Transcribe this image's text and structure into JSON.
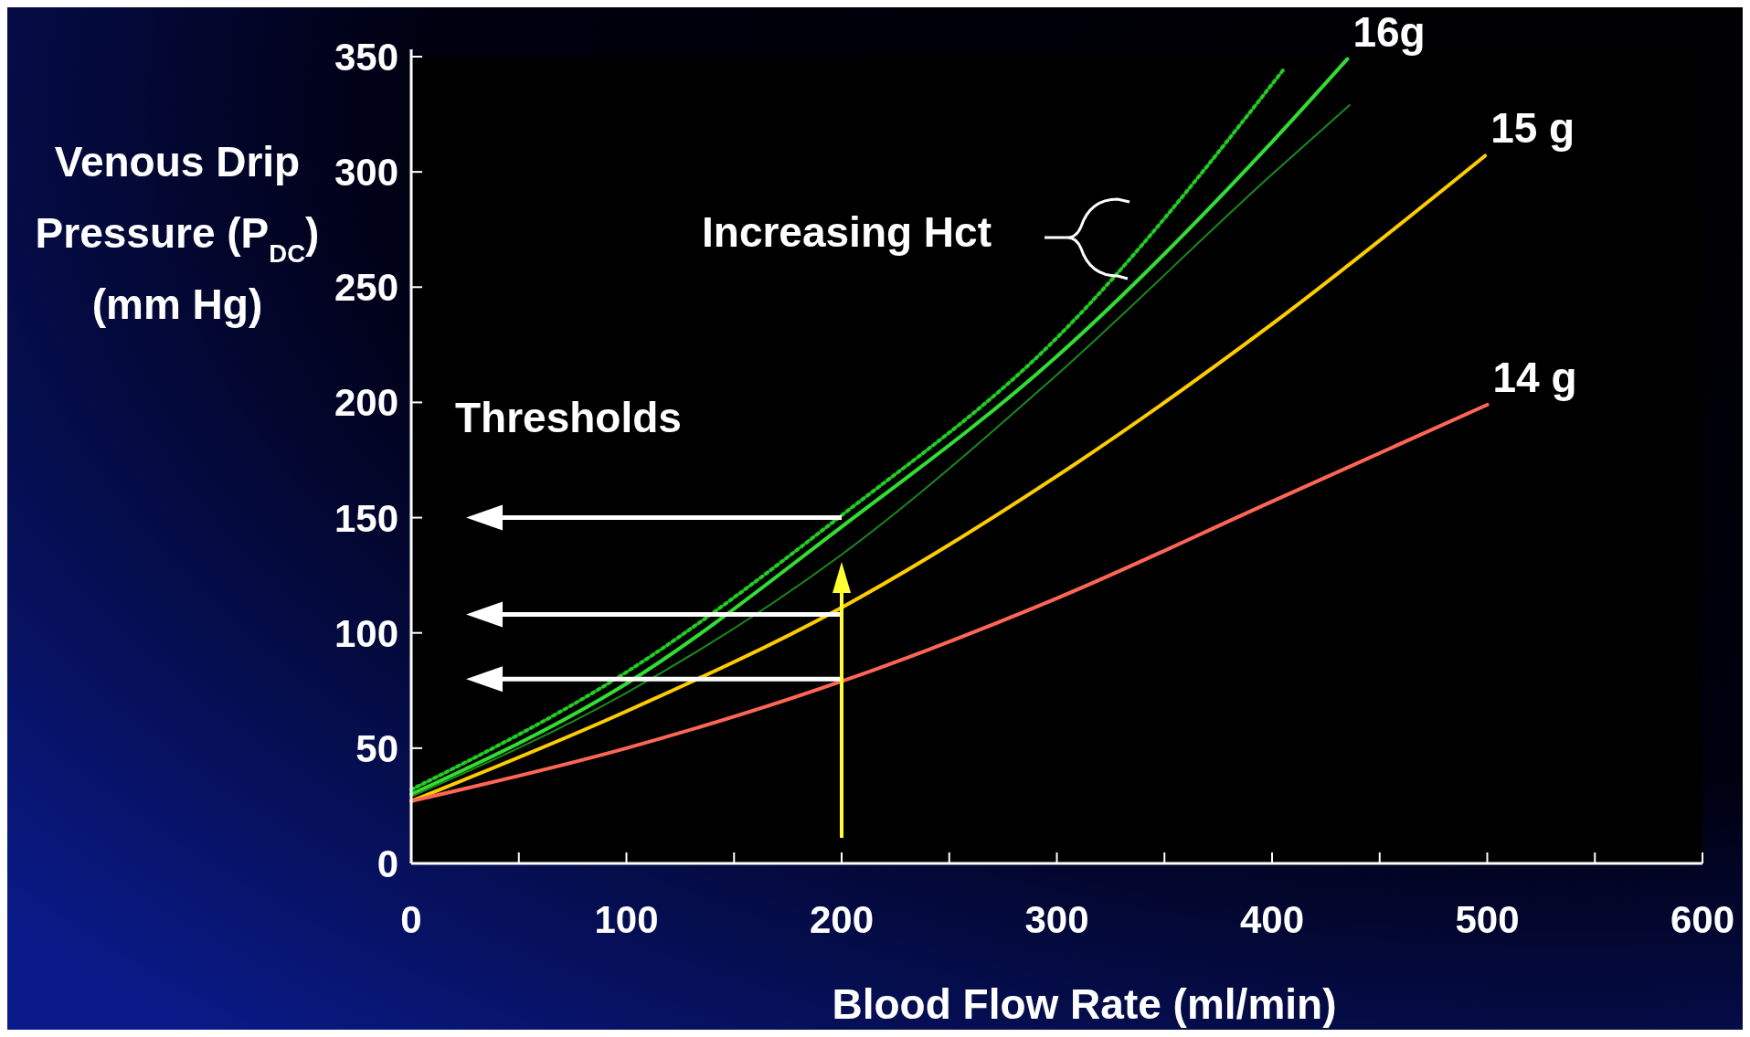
{
  "chart_data": {
    "type": "line",
    "xlabel": "Blood Flow Rate (ml/min)",
    "ylabel": "Venous Drip\nPressure (P$_{DC}$)\n(mm Hg)",
    "xlim": [
      0,
      600
    ],
    "ylim": [
      0,
      350
    ],
    "xticks": [
      0,
      {
        "value": 50,
        "label": null
      },
      100,
      {
        "value": 150,
        "label": null
      },
      200,
      {
        "value": 250,
        "label": null
      },
      300,
      {
        "value": 350,
        "label": null
      },
      400,
      {
        "value": 450,
        "label": null
      },
      500,
      {
        "value": 550,
        "label": null
      },
      600
    ],
    "yticks": [
      0,
      50,
      100,
      150,
      200,
      250,
      300,
      350
    ],
    "grid": false,
    "marker": "none",
    "series": [
      {
        "color": "#22cc22",
        "line_style": "dotted",
        "x": [
          0,
          100,
          200,
          300,
          405
        ],
        "values": [
          32,
          83,
          151,
          228,
          344
        ]
      },
      {
        "name": "16g",
        "color": "#33dd33",
        "line_style": "solid",
        "x": [
          0,
          100,
          200,
          300,
          400,
          435
        ],
        "values": [
          30,
          78,
          146,
          220,
          313,
          349
        ]
      },
      {
        "color": "#1a8a1a",
        "line_style": "solid",
        "x": [
          0,
          100,
          200,
          300,
          400,
          436
        ],
        "values": [
          29,
          74,
          134,
          212,
          299,
          329
        ]
      },
      {
        "name": "15 g",
        "color": "#ffcc00",
        "line_style": "solid",
        "x": [
          0,
          100,
          200,
          300,
          400,
          499
        ],
        "values": [
          27,
          66,
          111,
          168,
          234,
          307
        ]
      },
      {
        "name": "14 g",
        "color": "#ff6655",
        "line_style": "solid",
        "x": [
          0,
          100,
          200,
          300,
          400,
          500
        ],
        "values": [
          27,
          50,
          79,
          115,
          157,
          199
        ]
      }
    ],
    "ref_lines": [
      {
        "axis": "y",
        "value": 150,
        "color": "#ffffff"
      },
      {
        "axis": "y",
        "value": 108,
        "color": "#ffffff"
      },
      {
        "axis": "y",
        "value": 80,
        "color": "#ffffff"
      },
      {
        "axis": "x",
        "value": 200,
        "color": "#ffff33"
      }
    ],
    "annotations": [
      "Thresholds",
      "Increasing Hct"
    ]
  }
}
